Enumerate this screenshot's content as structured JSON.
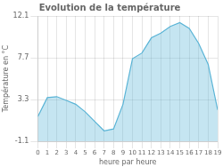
{
  "chart_data": {
    "type": "area",
    "title": "Evolution de la température",
    "x_label": "heure par heure",
    "y_label": "Température en °C",
    "x": [
      0,
      1,
      2,
      3,
      4,
      5,
      6,
      7,
      8,
      9,
      10,
      11,
      12,
      13,
      14,
      15,
      16,
      17,
      18,
      19
    ],
    "values": [
      1.5,
      3.5,
      3.6,
      3.2,
      2.8,
      2.0,
      1.0,
      0.0,
      0.2,
      2.8,
      7.6,
      8.2,
      9.8,
      10.3,
      11.0,
      11.4,
      10.8,
      9.2,
      7.0,
      2.2
    ],
    "color": "#5ab4d6",
    "xlim": [
      0,
      19
    ],
    "xticks": [
      0,
      1,
      2,
      3,
      4,
      5,
      6,
      7,
      8,
      9,
      10,
      11,
      12,
      13,
      14,
      15,
      16,
      17,
      18,
      19
    ],
    "ylim": [
      -1.1,
      12.1
    ],
    "yticks": [
      -1.1,
      3.3,
      7.7,
      12.1
    ],
    "grid": true
  }
}
